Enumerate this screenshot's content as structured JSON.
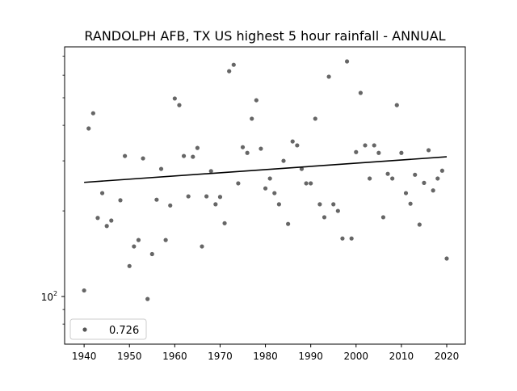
{
  "chart_data": {
    "type": "scatter",
    "title": "RANDOLPH AFB, TX US highest 5 hour rainfall - ANNUAL",
    "xlabel": "",
    "ylabel": "",
    "xlim": [
      1935.7,
      2024.1
    ],
    "ylim": [
      68,
      755
    ],
    "yscale": "log",
    "grid": false,
    "x_ticks": [
      1940,
      1950,
      1960,
      1970,
      1980,
      1990,
      2000,
      2010,
      2020
    ],
    "y_ticks": [
      {
        "value": 100,
        "label": "10",
        "exp": "2"
      }
    ],
    "y_minor_ticks": [
      80,
      90,
      200,
      300,
      400,
      500,
      600,
      700
    ],
    "legend": {
      "position": "lower-left",
      "entries": [
        "0.726"
      ]
    },
    "marker_color": "#555555",
    "trend_color": "#000000",
    "series": [
      {
        "x": [
          1940,
          1941,
          1942,
          1943,
          1944,
          1945,
          1946,
          1948,
          1949,
          1950,
          1951,
          1952,
          1953,
          1954,
          1955,
          1956,
          1957,
          1958,
          1959,
          1960,
          1961,
          1962,
          1963,
          1964,
          1965,
          1966,
          1967,
          1968,
          1969,
          1970,
          1971,
          1972,
          1973,
          1974,
          1975,
          1976,
          1977,
          1978,
          1979,
          1980,
          1981,
          1982,
          1983,
          1984,
          1985,
          1986,
          1987,
          1988,
          1989,
          1990,
          1991,
          1992,
          1993,
          1994,
          1995,
          1996,
          1997,
          1998,
          1999,
          2000,
          2001,
          2002,
          2003,
          2004,
          2005,
          2006,
          2007,
          2008,
          2009,
          2010,
          2011,
          2012,
          2013,
          2014,
          2015,
          2016,
          2017,
          2018,
          2019,
          2020
        ],
        "y": [
          105,
          390,
          441,
          189,
          231,
          177,
          185,
          218,
          312,
          128,
          150,
          158,
          306,
          98,
          141,
          219,
          281,
          158,
          209,
          497,
          471,
          312,
          225,
          310,
          333,
          150,
          225,
          276,
          211,
          224,
          181,
          620,
          653,
          250,
          335,
          320,
          422,
          490,
          331,
          240,
          260,
          231,
          211,
          300,
          180,
          351,
          340,
          281,
          250,
          250,
          422,
          211,
          190,
          593,
          211,
          200,
          160,
          671,
          160,
          322,
          520,
          340,
          260,
          340,
          320,
          190,
          270,
          260,
          471,
          320,
          231,
          212,
          268,
          179,
          251,
          327,
          236,
          260,
          277,
          136
        ]
      }
    ],
    "trend": {
      "x": [
        1940,
        2020
      ],
      "y": [
        252,
        310
      ]
    }
  }
}
